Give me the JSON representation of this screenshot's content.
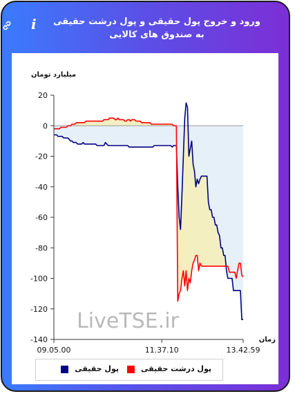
{
  "header": {
    "title": "ورود و خروج پول حقیقی و پول درشت حقیقی به صندوق های کالایی"
  },
  "watermark": "LiveTSE.ir",
  "chart_data": {
    "type": "line",
    "ylabel": "میلیارد تومان",
    "xlabel": "زمان",
    "ylim": [
      -140,
      20
    ],
    "yticks": [
      20,
      0,
      -20,
      -40,
      -60,
      -80,
      -100,
      -120,
      -140
    ],
    "xtick_labels": [
      "09.05.00",
      "11.37.10",
      "13.42.59"
    ],
    "series": [
      {
        "name": "پول حقیقی",
        "color": "#000080",
        "fill": "#e6f0f8",
        "values": [
          -6,
          -6,
          -6,
          -7,
          -7,
          -7,
          -7,
          -8,
          -8,
          -8,
          -8,
          -9,
          -10,
          -10,
          -11,
          -11,
          -11,
          -12,
          -12,
          -12,
          -12,
          -11,
          -12,
          -12,
          -12,
          -12,
          -12,
          -12,
          -12,
          -12,
          -12,
          -13,
          -13,
          -13,
          -13,
          -13,
          -13,
          -11,
          -12,
          -13,
          -13,
          -13,
          -13,
          -13,
          -13,
          -13,
          -13,
          -13,
          -13,
          -13,
          -13,
          -13,
          -13,
          -13,
          -14,
          -14,
          -14,
          -14,
          -14,
          -14,
          -14,
          -14,
          -14,
          -14,
          -14,
          -14,
          -14,
          -14,
          -14,
          -14,
          -14,
          -14,
          -13,
          -13,
          -13,
          -13,
          -13,
          -13,
          -13,
          -13,
          -13,
          -13,
          -13,
          -13,
          -13,
          -14,
          -13,
          -13,
          -13,
          -40,
          -60,
          -68,
          -45,
          -20,
          5,
          15,
          12,
          -20,
          -15,
          -10,
          -25,
          -30,
          -40,
          -35,
          -38,
          -35,
          -33,
          -33,
          -33,
          -33,
          -33,
          -50,
          -55,
          -55,
          -60,
          -60,
          -65,
          -65,
          -70,
          -72,
          -80,
          -80,
          -85,
          -85,
          -95,
          -100,
          -100,
          -100,
          -100,
          -108,
          -108,
          -108,
          -108,
          -108,
          -108,
          -127,
          -127
        ]
      },
      {
        "name": "پول درشت حقیقی",
        "color": "#ff0000",
        "fill": "#f3efc0",
        "values": [
          -2,
          -2,
          -2,
          -2,
          -2,
          -1,
          -1,
          -1,
          -1,
          -1,
          0,
          0,
          0,
          1,
          1,
          1,
          2,
          2,
          2,
          2,
          2,
          2,
          2,
          3,
          3,
          3,
          3,
          3,
          3,
          3,
          3,
          3,
          3,
          3,
          3,
          3,
          4,
          4,
          4,
          4,
          5,
          5,
          5,
          5,
          4,
          4,
          5,
          4,
          4,
          4,
          4,
          3,
          3,
          4,
          4,
          3,
          4,
          4,
          4,
          3,
          3,
          3,
          3,
          2,
          2,
          2,
          2,
          2,
          2,
          2,
          1,
          1,
          1,
          1,
          1,
          1,
          1,
          1,
          1,
          1,
          1,
          1,
          1,
          1,
          1,
          1,
          0,
          0,
          0,
          -115,
          -110,
          -108,
          -100,
          -95,
          -105,
          -95,
          -108,
          -100,
          -103,
          -95,
          -90,
          -88,
          -85,
          -85,
          -95,
          -90,
          -92,
          -92,
          -92,
          -92,
          -92,
          -92,
          -92,
          -92,
          -92,
          -92,
          -92,
          -92,
          -92,
          -92,
          -92,
          -92,
          -92,
          -92,
          -92,
          -92,
          -96,
          -96,
          -96,
          -96,
          -96,
          -100,
          -95,
          -90,
          -90,
          -98,
          -99
        ]
      }
    ]
  },
  "legend": {
    "items": [
      {
        "label": "پول حقیقی",
        "color": "#000080"
      },
      {
        "label": "پول درشت حقیقی",
        "color": "#ff0000"
      }
    ]
  }
}
